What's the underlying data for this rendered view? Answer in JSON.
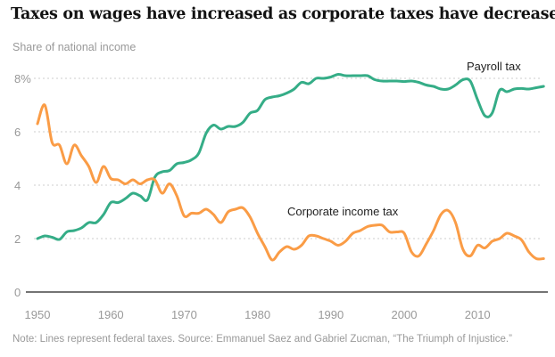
{
  "title": "Taxes on wages have increased as corporate taxes have decreased.",
  "subtitle": "Share of national income",
  "note": "Note: Lines represent federal taxes. Source: Emmanuel Saez and Gabriel Zucman, “The Triumph of Injustice.”",
  "chart_data": {
    "type": "line",
    "xlabel": "",
    "ylabel": "Share of national income",
    "xlim": [
      1950,
      2019
    ],
    "ylim": [
      0,
      8
    ],
    "grid": true,
    "x_ticks": [
      "1950",
      "1960",
      "1970",
      "1980",
      "1990",
      "2000",
      "2010"
    ],
    "y_ticks": [
      "0",
      "2",
      "4",
      "6",
      "8%"
    ],
    "x_start": 1950,
    "series": [
      {
        "name": "Payroll tax",
        "color": "#35ad87",
        "values": [
          2.0,
          2.1,
          2.05,
          1.97,
          2.25,
          2.3,
          2.4,
          2.6,
          2.6,
          2.9,
          3.35,
          3.35,
          3.5,
          3.7,
          3.6,
          3.45,
          4.3,
          4.5,
          4.55,
          4.8,
          4.85,
          4.95,
          5.2,
          5.95,
          6.25,
          6.1,
          6.2,
          6.2,
          6.35,
          6.7,
          6.8,
          7.2,
          7.3,
          7.35,
          7.45,
          7.6,
          7.85,
          7.8,
          8.0,
          8.0,
          8.05,
          8.15,
          8.1,
          8.1,
          8.1,
          8.1,
          7.95,
          7.9,
          7.9,
          7.9,
          7.88,
          7.9,
          7.85,
          7.75,
          7.7,
          7.6,
          7.6,
          7.75,
          7.95,
          7.9,
          7.2,
          6.6,
          6.7,
          7.55,
          7.5,
          7.6,
          7.62,
          7.6,
          7.65,
          7.7
        ]
      },
      {
        "name": "Corporate income tax",
        "color": "#fa9c46",
        "values": [
          6.3,
          7.0,
          5.6,
          5.5,
          4.8,
          5.5,
          5.1,
          4.7,
          4.1,
          4.7,
          4.25,
          4.2,
          4.05,
          4.2,
          4.05,
          4.2,
          4.2,
          3.7,
          4.05,
          3.6,
          2.85,
          2.95,
          2.95,
          3.1,
          2.9,
          2.6,
          3.0,
          3.1,
          3.15,
          2.8,
          2.2,
          1.7,
          1.2,
          1.5,
          1.7,
          1.6,
          1.75,
          2.1,
          2.1,
          2.0,
          1.9,
          1.75,
          1.9,
          2.2,
          2.3,
          2.45,
          2.5,
          2.5,
          2.25,
          2.25,
          2.2,
          1.5,
          1.35,
          1.8,
          2.3,
          2.9,
          3.05,
          2.6,
          1.6,
          1.35,
          1.75,
          1.65,
          1.9,
          2.0,
          2.2,
          2.1,
          1.95,
          1.5,
          1.25,
          1.25
        ]
      }
    ]
  }
}
